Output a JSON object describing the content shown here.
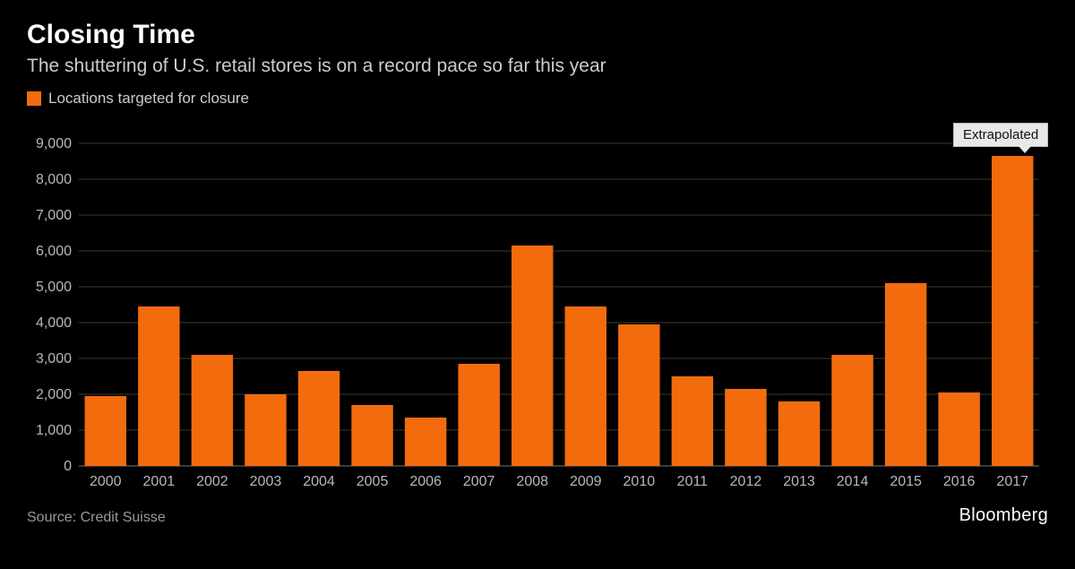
{
  "header": {
    "title": "Closing Time",
    "subtitle": "The shuttering of U.S. retail stores is on a record pace so far this year"
  },
  "legend": {
    "label": "Locations targeted for closure",
    "swatch_color": "#f26c0d"
  },
  "chart": {
    "type": "bar",
    "background_color": "#000000",
    "grid_color": "#3a3a3a",
    "baseline_color": "#777777",
    "axis_label_color": "#b8b8b8",
    "axis_fontsize": 16,
    "bar_color": "#f26c0d",
    "bar_width_ratio": 0.78,
    "ylim": [
      0,
      9000
    ],
    "ytick_step": 1000,
    "y_tick_format": "comma",
    "categories": [
      "2000",
      "2001",
      "2002",
      "2003",
      "2004",
      "2005",
      "2006",
      "2007",
      "2008",
      "2009",
      "2010",
      "2011",
      "2012",
      "2013",
      "2014",
      "2015",
      "2016",
      "2017"
    ],
    "values": [
      1950,
      4450,
      3100,
      2000,
      2650,
      1700,
      1350,
      2850,
      6150,
      4450,
      3950,
      2500,
      2150,
      1800,
      3100,
      5100,
      2050,
      8650
    ],
    "callout": {
      "index": 17,
      "label": "Extrapolated"
    }
  },
  "footer": {
    "source": "Source: Credit Suisse",
    "brand": "Bloomberg"
  }
}
